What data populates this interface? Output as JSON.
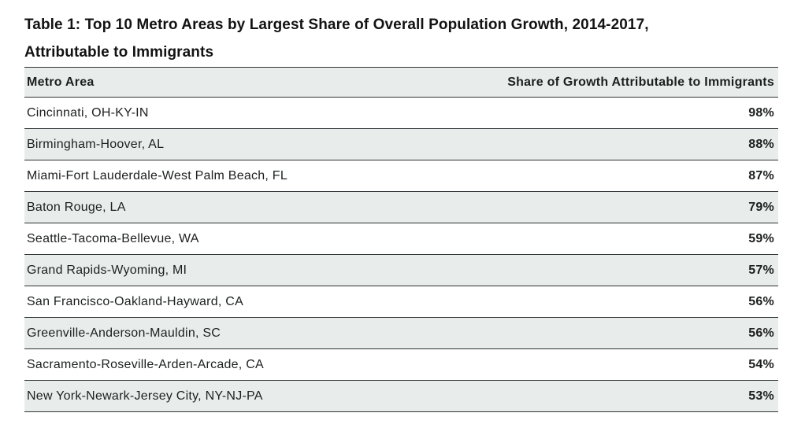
{
  "table": {
    "title_line1": "Table 1: Top 10 Metro Areas by Largest Share of Overall Population Growth, 2014-2017,",
    "title_line2": "Attributable to Immigrants",
    "columns": [
      "Metro Area",
      "Share of Growth Attributable to Immigrants"
    ],
    "rows": [
      {
        "metro": "Cincinnati, OH-KY-IN",
        "share": "98%"
      },
      {
        "metro": "Birmingham-Hoover, AL",
        "share": "88%"
      },
      {
        "metro": "Miami-Fort Lauderdale-West Palm Beach, FL",
        "share": "87%"
      },
      {
        "metro": "Baton Rouge, LA",
        "share": "79%"
      },
      {
        "metro": "Seattle-Tacoma-Bellevue, WA",
        "share": "59%"
      },
      {
        "metro": "Grand Rapids-Wyoming, MI",
        "share": "57%"
      },
      {
        "metro": "San Francisco-Oakland-Hayward, CA",
        "share": "56%"
      },
      {
        "metro": "Greenville-Anderson-Mauldin, SC",
        "share": "56%"
      },
      {
        "metro": "Sacramento-Roseville-Arden-Arcade, CA",
        "share": "54%"
      },
      {
        "metro": "New York-Newark-Jersey City, NY-NJ-PA",
        "share": "53%"
      }
    ]
  },
  "colors": {
    "alt_row_background": "#e8edeb",
    "border": "#2e3234",
    "text": "#1d1f1f",
    "title_text": "#121212"
  },
  "chart_data": {
    "type": "table",
    "title": "Table 1: Top 10 Metro Areas by Largest Share of Overall Population Growth, 2014-2017, Attributable to Immigrants",
    "columns": [
      "Metro Area",
      "Share of Growth Attributable to Immigrants"
    ],
    "categories": [
      "Cincinnati, OH-KY-IN",
      "Birmingham-Hoover, AL",
      "Miami-Fort Lauderdale-West Palm Beach, FL",
      "Baton Rouge, LA",
      "Seattle-Tacoma-Bellevue, WA",
      "Grand Rapids-Wyoming, MI",
      "San Francisco-Oakland-Hayward, CA",
      "Greenville-Anderson-Mauldin, SC",
      "Sacramento-Roseville-Arden-Arcade, CA",
      "New York-Newark-Jersey City, NY-NJ-PA"
    ],
    "values": [
      98,
      88,
      87,
      79,
      59,
      57,
      56,
      56,
      54,
      53
    ],
    "unit": "%"
  }
}
